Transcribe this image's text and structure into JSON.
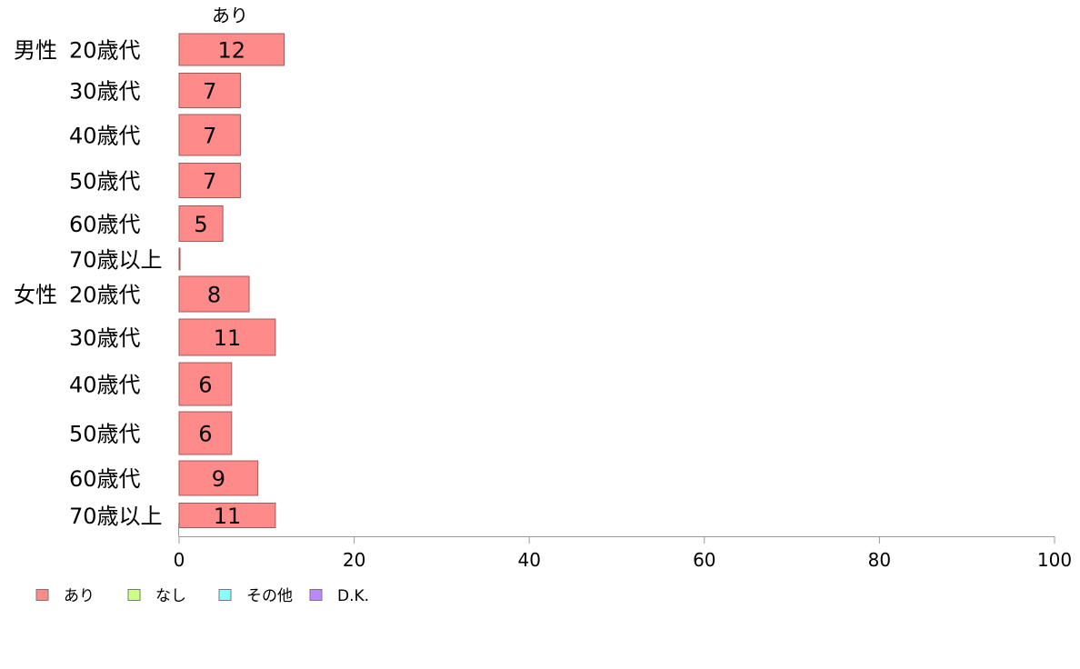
{
  "chart_data": {
    "type": "bar",
    "orientation": "horizontal",
    "stacked": true,
    "column_header": "あり",
    "groups": [
      "男性",
      "女性"
    ],
    "categories": [
      {
        "group": "男性",
        "label": "20歳代"
      },
      {
        "group": "",
        "label": "30歳代"
      },
      {
        "group": "",
        "label": "40歳代"
      },
      {
        "group": "",
        "label": "50歳代"
      },
      {
        "group": "",
        "label": "60歳代"
      },
      {
        "group": "",
        "label": "70歳以上"
      },
      {
        "group": "女性",
        "label": "20歳代"
      },
      {
        "group": "",
        "label": "30歳代"
      },
      {
        "group": "",
        "label": "40歳代"
      },
      {
        "group": "",
        "label": "50歳代"
      },
      {
        "group": "",
        "label": "60歳代"
      },
      {
        "group": "",
        "label": "70歳以上"
      }
    ],
    "series": [
      {
        "name": "あり",
        "color": "#ff8a8a",
        "values": [
          12,
          7,
          7,
          7,
          5,
          0,
          8,
          11,
          6,
          6,
          9,
          11
        ],
        "labels": [
          "12",
          "7",
          "7",
          "7",
          "5",
          "",
          "8",
          "11",
          "6",
          "6",
          "9",
          "11"
        ]
      },
      {
        "name": "なし",
        "color": "#ccff88",
        "values": [
          null,
          null,
          null,
          null,
          null,
          null,
          null,
          null,
          null,
          null,
          null,
          null
        ]
      },
      {
        "name": "その他",
        "color": "#88ffff",
        "values": [
          null,
          null,
          null,
          null,
          null,
          null,
          null,
          null,
          null,
          null,
          null,
          null
        ]
      },
      {
        "name": "D.K.",
        "color": "#bb88ff",
        "values": [
          null,
          null,
          null,
          null,
          null,
          null,
          null,
          null,
          null,
          null,
          null,
          null
        ]
      }
    ],
    "xlim": [
      0,
      100
    ],
    "xticks": [
      "0",
      "20",
      "40",
      "60",
      "80",
      "100"
    ],
    "grid": false,
    "legend_position": "bottom-left"
  }
}
